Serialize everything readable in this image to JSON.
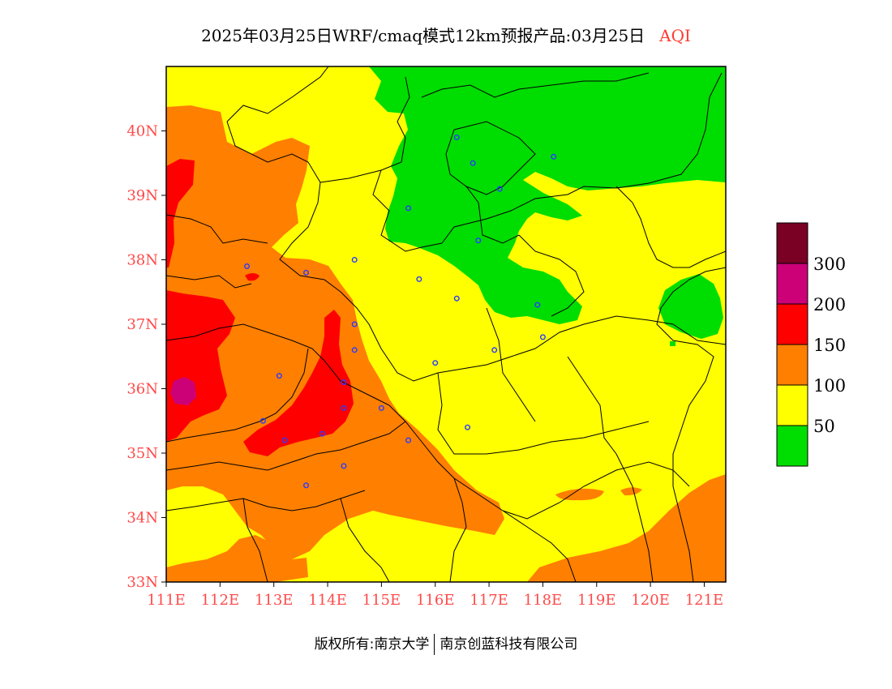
{
  "title": {
    "main": "2025年03月25日WRF/cmaq模式12km预报产品:03月25日",
    "product": "AQI"
  },
  "map": {
    "lat_labels": [
      "33N",
      "34N",
      "35N",
      "36N",
      "37N",
      "38N",
      "39N",
      "40N"
    ],
    "lon_labels": [
      "111E",
      "112E",
      "113E",
      "114E",
      "115E",
      "116E",
      "117E",
      "118E",
      "119E",
      "120E",
      "121E"
    ],
    "lon_range": [
      111,
      121.4
    ],
    "lat_range": [
      33,
      41
    ],
    "aqi_classes": [
      {
        "range": "0-50",
        "color": "#00dd00"
      },
      {
        "range": "50-100",
        "color": "#ffff00"
      },
      {
        "range": "100-150",
        "color": "#ff7f00"
      },
      {
        "range": "150-200",
        "color": "#ff0000"
      },
      {
        "range": "200-300",
        "color": "#cc0077"
      },
      {
        "range": ">300",
        "color": "#7a0024"
      }
    ],
    "city_markers": [
      [
        116.4,
        39.9
      ],
      [
        116.7,
        39.5
      ],
      [
        118.2,
        39.6
      ],
      [
        117.2,
        39.1
      ],
      [
        115.5,
        38.8
      ],
      [
        116.8,
        38.3
      ],
      [
        112.5,
        37.9
      ],
      [
        113.6,
        37.8
      ],
      [
        114.5,
        38.0
      ],
      [
        115.7,
        37.7
      ],
      [
        116.4,
        37.4
      ],
      [
        117.9,
        37.3
      ],
      [
        114.5,
        37.0
      ],
      [
        114.5,
        36.6
      ],
      [
        117.1,
        36.6
      ],
      [
        118.0,
        36.8
      ],
      [
        116.0,
        36.4
      ],
      [
        113.1,
        36.2
      ],
      [
        114.3,
        36.1
      ],
      [
        114.3,
        35.7
      ],
      [
        115.0,
        35.7
      ],
      [
        112.8,
        35.5
      ],
      [
        113.2,
        35.2
      ],
      [
        113.9,
        35.3
      ],
      [
        115.5,
        35.2
      ],
      [
        116.6,
        35.4
      ],
      [
        114.3,
        34.8
      ],
      [
        113.6,
        34.5
      ]
    ]
  },
  "legend": {
    "labels": [
      "300",
      "200",
      "150",
      "100",
      "50"
    ]
  },
  "footer": {
    "left": "版权所有:南京大学",
    "right": "南京创蓝科技有限公司"
  }
}
